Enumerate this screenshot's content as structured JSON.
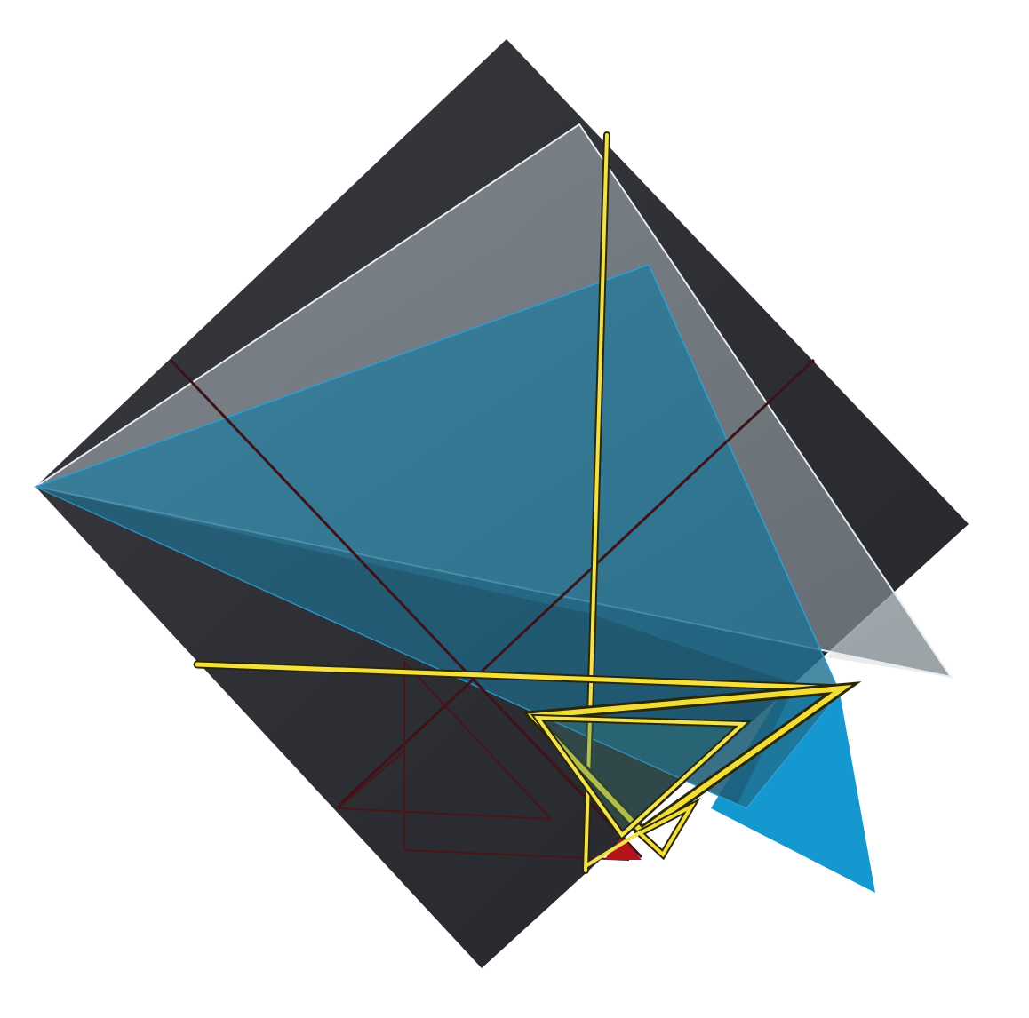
{
  "artwork": {
    "palette": {
      "background": "#ffffff",
      "dark_panel": "#2b2c31",
      "translucent_grey": "#8b959c",
      "cyan_blue": "#1f86b2",
      "bright_blue": "#1597cf",
      "white_shard": "#e9ecea",
      "yellow_rod": "#f0e24a",
      "dark_red_line": "#4a1016",
      "red_accent": "#b3141b"
    },
    "elements": [
      "dark-diamond-panel",
      "grey-translucent-triangle",
      "blue-translucent-triangle",
      "blue-shard",
      "white-shard",
      "dark-red-diagonal-lines",
      "yellow-rods",
      "yellow-triangle-frame",
      "small-yellow-triangle",
      "embossed-triangles"
    ]
  }
}
